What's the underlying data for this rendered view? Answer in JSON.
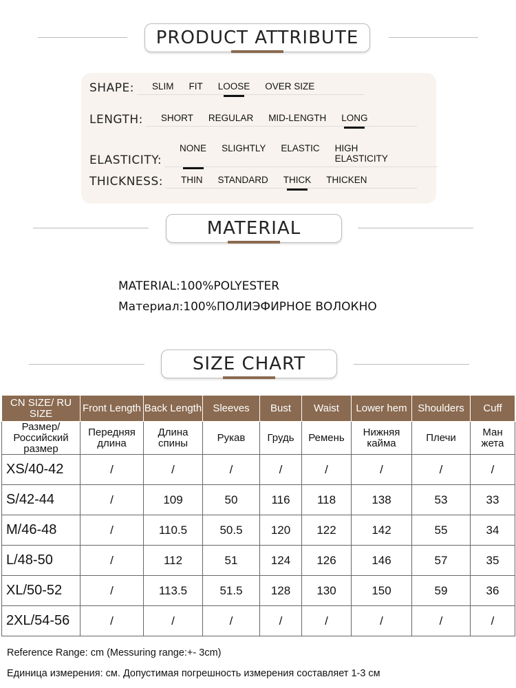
{
  "sections": {
    "attribute": "PRODUCT ATTRIBUTE",
    "material": "MATERIAL",
    "size_chart": "SIZE CHART"
  },
  "accent_color": "#8a6a50",
  "attributes": [
    {
      "label": "SHAPE:",
      "options": [
        "SLIM",
        "FIT",
        "LOOSE",
        "OVER SIZE"
      ],
      "selected": "LOOSE"
    },
    {
      "label": "LENGTH:",
      "options": [
        "SHORT",
        "REGULAR",
        "MID-LENGTH",
        "LONG"
      ],
      "selected": "LONG"
    },
    {
      "label": "ELASTICITY:",
      "options": [
        "NONE",
        "SLIGHTLY",
        "ELASTIC",
        "HIGH ELASTICITY"
      ],
      "selected": "NONE"
    },
    {
      "label": "THICKNESS:",
      "options": [
        "THIN",
        "STANDARD",
        "THICK",
        "THICKEN"
      ],
      "selected": "THICK"
    }
  ],
  "material": {
    "en": "MATERIAL:100%POLYESTER",
    "ru": "Материал:100%ПОЛИЭФИРНОЕ ВОЛОКНО"
  },
  "size_table": {
    "headers_en": [
      "CN SIZE/ RU SIZE",
      "Front Length",
      "Back Length",
      "Sleeves",
      "Bust",
      "Waist",
      "Lower hem",
      "Shoulders",
      "Cuff"
    ],
    "headers_ru": [
      "Размер/ Российский размер",
      "Передняя длина",
      "Длина спины",
      "Рукав",
      "Грудь",
      "Ремень",
      "Нижняя кайма",
      "Плечи",
      "Ман жета"
    ],
    "rows": [
      [
        "XS/40-42",
        "/",
        "/",
        "/",
        "/",
        "/",
        "/",
        "/",
        "/"
      ],
      [
        "S/42-44",
        "/",
        "109",
        "50",
        "116",
        "118",
        "138",
        "53",
        "33"
      ],
      [
        "M/46-48",
        "/",
        "110.5",
        "50.5",
        "120",
        "122",
        "142",
        "55",
        "34"
      ],
      [
        "L/48-50",
        "/",
        "112",
        "51",
        "124",
        "126",
        "146",
        "57",
        "35"
      ],
      [
        "XL/50-52",
        "/",
        "113.5",
        "51.5",
        "128",
        "130",
        "150",
        "59",
        "36"
      ],
      [
        "2XL/54-56",
        "/",
        "/",
        "/",
        "/",
        "/",
        "/",
        "/",
        "/"
      ]
    ]
  },
  "notes": {
    "en": "Reference Range: cm (Messuring range:+- 3cm)",
    "ru": "Единица измерения: см. Допустимая погрешность измерения составляет 1-3 см"
  }
}
